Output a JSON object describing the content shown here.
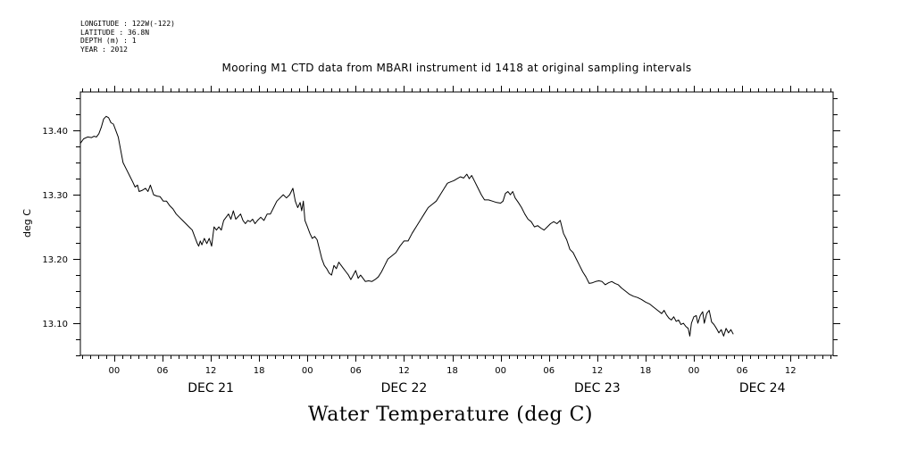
{
  "meta": {
    "longitude": "LONGITUDE : 122W(-122)",
    "latitude": "LATITUDE : 36.8N",
    "depth": "DEPTH (m) : 1",
    "year": "YEAR : 2012"
  },
  "chart_data": {
    "type": "line",
    "title": "Mooring M1 CTD data from MBARI instrument id 1418 at original sampling intervals",
    "bottom_title": "Water Temperature (deg C)",
    "ylabel": "deg C",
    "xlabel": "",
    "ylim": [
      13.05,
      13.46
    ],
    "xlim_hours": [
      -4.2,
      89.3
    ],
    "x_units": "hours since 2012-12-21 00:00",
    "yticks": [
      13.1,
      13.2,
      13.3,
      13.4
    ],
    "ytick_labels": [
      "13.10",
      "13.20",
      "13.30",
      "13.40"
    ],
    "xtick_labels": [
      {
        "hour": 0,
        "label": "00"
      },
      {
        "hour": 6,
        "label": "06"
      },
      {
        "hour": 12,
        "label": "12"
      },
      {
        "hour": 18,
        "label": "18"
      },
      {
        "hour": 24,
        "label": "00"
      },
      {
        "hour": 30,
        "label": "06"
      },
      {
        "hour": 36,
        "label": "12"
      },
      {
        "hour": 42,
        "label": "18"
      },
      {
        "hour": 48,
        "label": "00"
      },
      {
        "hour": 54,
        "label": "06"
      },
      {
        "hour": 60,
        "label": "12"
      },
      {
        "hour": 66,
        "label": "18"
      },
      {
        "hour": 72,
        "label": "00"
      },
      {
        "hour": 78,
        "label": "06"
      },
      {
        "hour": 84,
        "label": "12"
      }
    ],
    "day_labels": [
      {
        "hour": 12,
        "label": "DEC 21"
      },
      {
        "hour": 36,
        "label": "DEC 22"
      },
      {
        "hour": 60,
        "label": "DEC 23"
      },
      {
        "hour": 80.5,
        "label": "DEC 24"
      }
    ],
    "series": [
      {
        "name": "",
        "points": [
          [
            -4.2,
            13.38
          ],
          [
            -3.8,
            13.387
          ],
          [
            -3.3,
            13.39
          ],
          [
            -2.8,
            13.389
          ],
          [
            -2.5,
            13.391
          ],
          [
            -2.2,
            13.39
          ],
          [
            -1.9,
            13.395
          ],
          [
            -1.6,
            13.405
          ],
          [
            -1.3,
            13.418
          ],
          [
            -1.0,
            13.422
          ],
          [
            -0.7,
            13.42
          ],
          [
            -0.4,
            13.412
          ],
          [
            -0.1,
            13.41
          ],
          [
            0.2,
            13.4
          ],
          [
            0.5,
            13.39
          ],
          [
            0.8,
            13.37
          ],
          [
            1.1,
            13.35
          ],
          [
            1.5,
            13.34
          ],
          [
            1.9,
            13.33
          ],
          [
            2.3,
            13.32
          ],
          [
            2.6,
            13.312
          ],
          [
            2.9,
            13.315
          ],
          [
            3.1,
            13.305
          ],
          [
            3.5,
            13.307
          ],
          [
            3.9,
            13.31
          ],
          [
            4.2,
            13.305
          ],
          [
            4.5,
            13.315
          ],
          [
            4.9,
            13.3
          ],
          [
            5.3,
            13.298
          ],
          [
            5.7,
            13.297
          ],
          [
            6.1,
            13.29
          ],
          [
            6.5,
            13.29
          ],
          [
            6.9,
            13.283
          ],
          [
            7.3,
            13.278
          ],
          [
            7.7,
            13.27
          ],
          [
            8.1,
            13.265
          ],
          [
            8.5,
            13.26
          ],
          [
            8.9,
            13.255
          ],
          [
            9.3,
            13.25
          ],
          [
            9.7,
            13.245
          ],
          [
            10.0,
            13.235
          ],
          [
            10.3,
            13.225
          ],
          [
            10.5,
            13.22
          ],
          [
            10.7,
            13.228
          ],
          [
            10.9,
            13.222
          ],
          [
            11.2,
            13.232
          ],
          [
            11.5,
            13.224
          ],
          [
            11.8,
            13.232
          ],
          [
            12.1,
            13.22
          ],
          [
            12.4,
            13.25
          ],
          [
            12.7,
            13.245
          ],
          [
            13.0,
            13.25
          ],
          [
            13.3,
            13.245
          ],
          [
            13.6,
            13.26
          ],
          [
            13.9,
            13.265
          ],
          [
            14.2,
            13.27
          ],
          [
            14.5,
            13.262
          ],
          [
            14.8,
            13.275
          ],
          [
            15.1,
            13.262
          ],
          [
            15.4,
            13.266
          ],
          [
            15.7,
            13.27
          ],
          [
            16.0,
            13.26
          ],
          [
            16.3,
            13.255
          ],
          [
            16.6,
            13.26
          ],
          [
            16.9,
            13.258
          ],
          [
            17.2,
            13.262
          ],
          [
            17.5,
            13.255
          ],
          [
            17.8,
            13.26
          ],
          [
            18.2,
            13.265
          ],
          [
            18.6,
            13.26
          ],
          [
            19.0,
            13.27
          ],
          [
            19.4,
            13.27
          ],
          [
            19.8,
            13.28
          ],
          [
            20.2,
            13.29
          ],
          [
            20.6,
            13.295
          ],
          [
            21.0,
            13.3
          ],
          [
            21.4,
            13.295
          ],
          [
            21.8,
            13.3
          ],
          [
            22.2,
            13.31
          ],
          [
            22.5,
            13.29
          ],
          [
            22.8,
            13.28
          ],
          [
            23.1,
            13.288
          ],
          [
            23.3,
            13.275
          ],
          [
            23.5,
            13.29
          ],
          [
            23.7,
            13.26
          ],
          [
            24.0,
            13.25
          ],
          [
            24.3,
            13.24
          ],
          [
            24.6,
            13.232
          ],
          [
            24.9,
            13.235
          ],
          [
            25.2,
            13.23
          ],
          [
            25.5,
            13.215
          ],
          [
            25.8,
            13.2
          ],
          [
            26.1,
            13.19
          ],
          [
            26.4,
            13.185
          ],
          [
            26.7,
            13.178
          ],
          [
            27.0,
            13.175
          ],
          [
            27.3,
            13.19
          ],
          [
            27.6,
            13.185
          ],
          [
            27.9,
            13.195
          ],
          [
            28.2,
            13.19
          ],
          [
            28.5,
            13.185
          ],
          [
            28.8,
            13.18
          ],
          [
            29.1,
            13.175
          ],
          [
            29.4,
            13.168
          ],
          [
            29.7,
            13.175
          ],
          [
            30.0,
            13.182
          ],
          [
            30.3,
            13.17
          ],
          [
            30.6,
            13.175
          ],
          [
            30.9,
            13.17
          ],
          [
            31.2,
            13.165
          ],
          [
            31.6,
            13.166
          ],
          [
            32.0,
            13.165
          ],
          [
            32.4,
            13.168
          ],
          [
            32.8,
            13.172
          ],
          [
            33.2,
            13.18
          ],
          [
            33.6,
            13.19
          ],
          [
            34.0,
            13.2
          ],
          [
            34.5,
            13.205
          ],
          [
            35.0,
            13.21
          ],
          [
            35.5,
            13.22
          ],
          [
            36.0,
            13.228
          ],
          [
            36.5,
            13.228
          ],
          [
            37.0,
            13.24
          ],
          [
            37.5,
            13.25
          ],
          [
            38.0,
            13.26
          ],
          [
            38.5,
            13.27
          ],
          [
            39.0,
            13.28
          ],
          [
            39.5,
            13.285
          ],
          [
            40.0,
            13.29
          ],
          [
            40.5,
            13.3
          ],
          [
            41.0,
            13.31
          ],
          [
            41.4,
            13.318
          ],
          [
            41.8,
            13.32
          ],
          [
            42.2,
            13.322
          ],
          [
            42.6,
            13.325
          ],
          [
            43.0,
            13.328
          ],
          [
            43.4,
            13.326
          ],
          [
            43.8,
            13.332
          ],
          [
            44.1,
            13.325
          ],
          [
            44.4,
            13.33
          ],
          [
            44.8,
            13.32
          ],
          [
            45.2,
            13.31
          ],
          [
            45.6,
            13.3
          ],
          [
            46.0,
            13.292
          ],
          [
            46.5,
            13.292
          ],
          [
            47.0,
            13.29
          ],
          [
            47.5,
            13.288
          ],
          [
            48.0,
            13.287
          ],
          [
            48.3,
            13.29
          ],
          [
            48.6,
            13.302
          ],
          [
            48.9,
            13.305
          ],
          [
            49.2,
            13.3
          ],
          [
            49.5,
            13.305
          ],
          [
            49.8,
            13.295
          ],
          [
            50.2,
            13.288
          ],
          [
            50.6,
            13.28
          ],
          [
            51.0,
            13.27
          ],
          [
            51.4,
            13.262
          ],
          [
            51.8,
            13.258
          ],
          [
            52.2,
            13.25
          ],
          [
            52.6,
            13.252
          ],
          [
            53.0,
            13.248
          ],
          [
            53.4,
            13.245
          ],
          [
            53.8,
            13.25
          ],
          [
            54.2,
            13.255
          ],
          [
            54.6,
            13.258
          ],
          [
            55.0,
            13.255
          ],
          [
            55.4,
            13.26
          ],
          [
            55.8,
            13.24
          ],
          [
            56.2,
            13.23
          ],
          [
            56.6,
            13.215
          ],
          [
            57.0,
            13.21
          ],
          [
            57.4,
            13.2
          ],
          [
            57.8,
            13.19
          ],
          [
            58.2,
            13.18
          ],
          [
            58.6,
            13.172
          ],
          [
            59.0,
            13.162
          ],
          [
            59.4,
            13.163
          ],
          [
            59.8,
            13.165
          ],
          [
            60.2,
            13.166
          ],
          [
            60.6,
            13.165
          ],
          [
            61.0,
            13.16
          ],
          [
            61.4,
            13.163
          ],
          [
            61.8,
            13.165
          ],
          [
            62.2,
            13.162
          ],
          [
            62.6,
            13.16
          ],
          [
            63.0,
            13.155
          ],
          [
            63.5,
            13.15
          ],
          [
            64.0,
            13.145
          ],
          [
            64.5,
            13.142
          ],
          [
            65.0,
            13.14
          ],
          [
            65.5,
            13.137
          ],
          [
            66.0,
            13.133
          ],
          [
            66.5,
            13.13
          ],
          [
            67.0,
            13.125
          ],
          [
            67.5,
            13.12
          ],
          [
            68.0,
            13.115
          ],
          [
            68.3,
            13.12
          ],
          [
            68.6,
            13.113
          ],
          [
            68.9,
            13.108
          ],
          [
            69.2,
            13.105
          ],
          [
            69.5,
            13.11
          ],
          [
            69.8,
            13.103
          ],
          [
            70.1,
            13.105
          ],
          [
            70.4,
            13.098
          ],
          [
            70.7,
            13.1
          ],
          [
            71.0,
            13.095
          ],
          [
            71.3,
            13.092
          ],
          [
            71.5,
            13.08
          ],
          [
            71.7,
            13.1
          ],
          [
            72.0,
            13.11
          ],
          [
            72.3,
            13.112
          ],
          [
            72.5,
            13.1
          ],
          [
            72.8,
            13.112
          ],
          [
            73.1,
            13.118
          ],
          [
            73.3,
            13.1
          ],
          [
            73.6,
            13.115
          ],
          [
            73.9,
            13.12
          ],
          [
            74.2,
            13.102
          ],
          [
            74.5,
            13.098
          ],
          [
            74.8,
            13.092
          ],
          [
            75.1,
            13.085
          ],
          [
            75.4,
            13.09
          ],
          [
            75.7,
            13.08
          ],
          [
            76.0,
            13.092
          ],
          [
            76.3,
            13.085
          ],
          [
            76.6,
            13.09
          ],
          [
            76.9,
            13.083
          ]
        ]
      }
    ]
  }
}
